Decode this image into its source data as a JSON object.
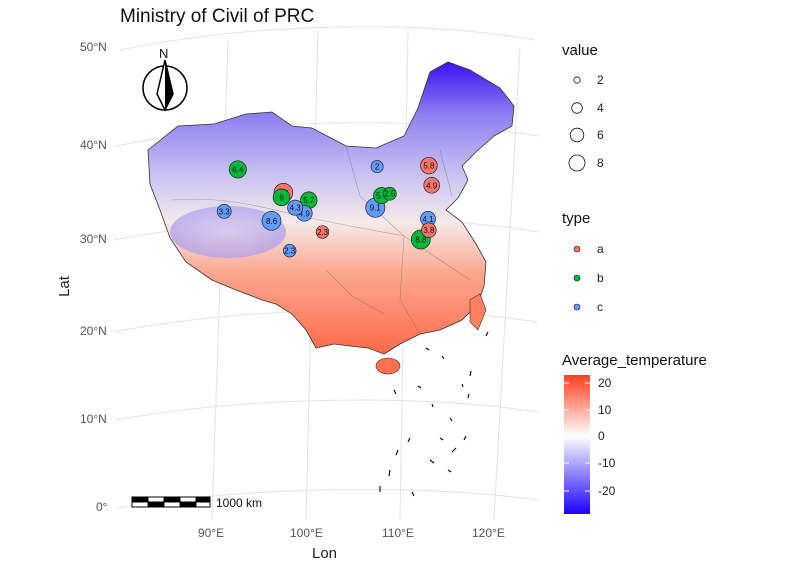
{
  "title": "Ministry of Civil of PRC",
  "xlabel": "Lon",
  "ylabel": "Lat",
  "north_label": "N",
  "scale_label": "1000 km",
  "lat_ticks": [
    "50°N",
    "40°N",
    "30°N",
    "20°N",
    "10°N",
    "0°"
  ],
  "lon_ticks": [
    "90°E",
    "100°E",
    "110°E",
    "120°E"
  ],
  "legend_value": {
    "title": "value",
    "labels": [
      "2",
      "4",
      "6",
      "8"
    ]
  },
  "legend_type": {
    "title": "type",
    "labels": [
      "a",
      "b",
      "c"
    ]
  },
  "legend_temp": {
    "title": "Average_temperature",
    "labels": [
      "20",
      "10",
      "0",
      "-10",
      "-20"
    ]
  },
  "colors": {
    "a": "#f8766d",
    "b": "#00ba38",
    "c": "#619cff",
    "cold": "#0000ff",
    "mid": "#ffffff",
    "warm": "#ff4020"
  },
  "chart_data": {
    "type": "scatter",
    "title": "Ministry of Civil of PRC",
    "xlabel": "Lon",
    "ylabel": "Lat",
    "xlim": [
      80,
      125
    ],
    "ylim": [
      0,
      52
    ],
    "points": [
      {
        "lon": 93.5,
        "lat": 37.5,
        "type": "b",
        "value": 6.4
      },
      {
        "lon": 98.5,
        "lat": 35.0,
        "type": "a",
        "value": 8.5
      },
      {
        "lon": 98.3,
        "lat": 34.5,
        "type": "b",
        "value": 6.0
      },
      {
        "lon": 101.3,
        "lat": 34.2,
        "type": "b",
        "value": 5.7
      },
      {
        "lon": 99.8,
        "lat": 33.4,
        "type": "c",
        "value": 4.3
      },
      {
        "lon": 100.8,
        "lat": 32.8,
        "type": "c",
        "value": 4.9
      },
      {
        "lon": 92.0,
        "lat": 33.0,
        "type": "c",
        "value": 3.3
      },
      {
        "lon": 97.2,
        "lat": 32.0,
        "type": "c",
        "value": 8.6
      },
      {
        "lon": 102.8,
        "lat": 30.8,
        "type": "a",
        "value": 2.3
      },
      {
        "lon": 99.2,
        "lat": 28.8,
        "type": "c",
        "value": 2.3
      },
      {
        "lon": 108.8,
        "lat": 37.8,
        "type": "c",
        "value": 2.0
      },
      {
        "lon": 109.3,
        "lat": 34.7,
        "type": "b",
        "value": 5.4
      },
      {
        "lon": 110.2,
        "lat": 34.9,
        "type": "b",
        "value": 2.5
      },
      {
        "lon": 108.6,
        "lat": 33.4,
        "type": "c",
        "value": 9.1
      },
      {
        "lon": 114.5,
        "lat": 37.9,
        "type": "a",
        "value": 5.8
      },
      {
        "lon": 114.8,
        "lat": 35.8,
        "type": "a",
        "value": 4.9
      },
      {
        "lon": 114.4,
        "lat": 32.2,
        "type": "c",
        "value": 4.1
      },
      {
        "lon": 114.5,
        "lat": 31.0,
        "type": "a",
        "value": 3.8
      },
      {
        "lon": 113.6,
        "lat": 30.0,
        "type": "b",
        "value": 8.8
      }
    ]
  }
}
